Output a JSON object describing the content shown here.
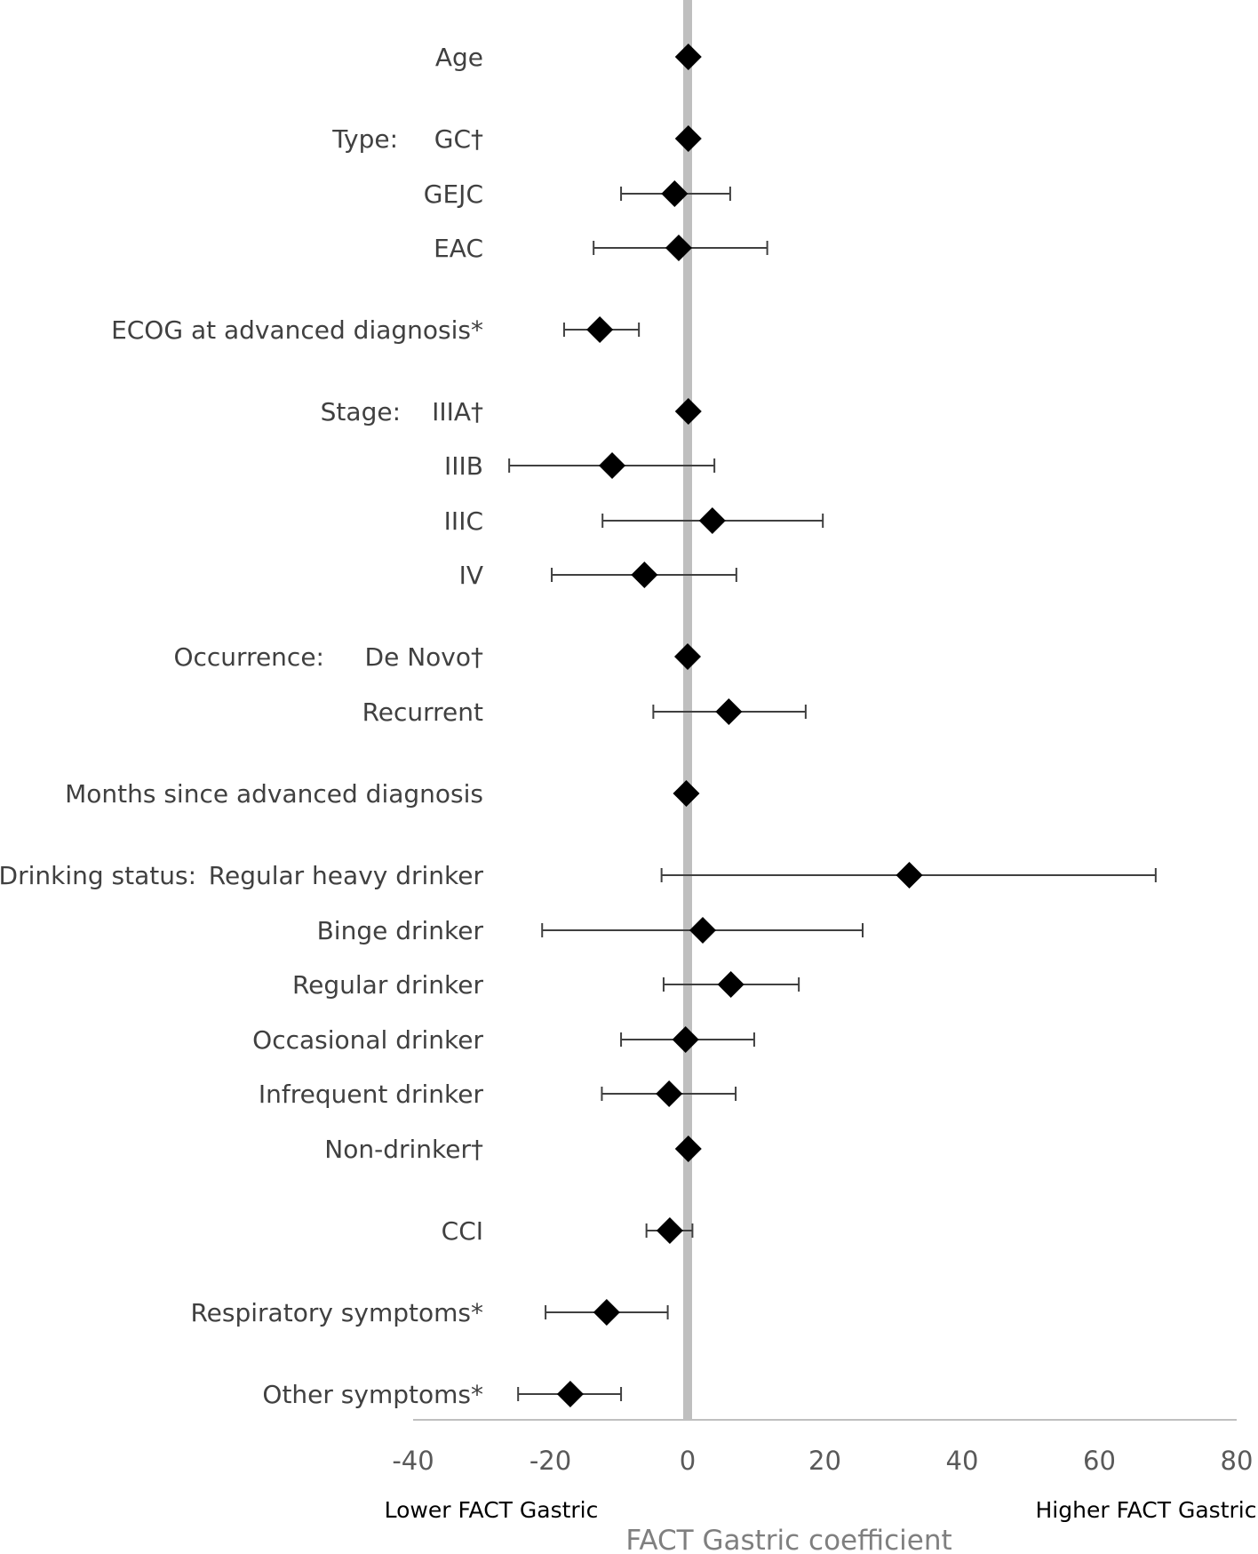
{
  "chart_data": {
    "type": "scatter",
    "subtype": "forest-plot",
    "xlabel": "FACT Gastric coefficient",
    "xlim": [
      -40,
      80
    ],
    "xticks": [
      "-40",
      "-20",
      "0",
      "20",
      "40",
      "60",
      "80"
    ],
    "reference_line": 0,
    "annotations": {
      "left": "Lower FACT Gastric",
      "right": "Higher FACT Gastric"
    },
    "colors": {
      "marker": "#000000",
      "errorbar": "#404040",
      "reference": "#bfbfbf",
      "text": "#404040"
    },
    "rows": [
      {
        "group": "",
        "label": "Age",
        "est": 0.1,
        "lo": null,
        "hi": null
      },
      {
        "group": "Type:",
        "label": "GC†",
        "est": 0.1,
        "lo": null,
        "hi": null
      },
      {
        "group": "",
        "label": "GEJC",
        "est": -1.9,
        "lo": -9.7,
        "hi": 6.2
      },
      {
        "group": "",
        "label": "EAC",
        "est": -1.3,
        "lo": -13.7,
        "hi": 11.6
      },
      {
        "group": "",
        "label": "ECOG at advanced diagnosis*",
        "est": -12.8,
        "lo": -18.0,
        "hi": -7.1
      },
      {
        "group": "Stage:",
        "label": "IIIA†",
        "est": 0.1,
        "lo": null,
        "hi": null
      },
      {
        "group": "",
        "label": "IIIB",
        "est": -11.0,
        "lo": -26.0,
        "hi": 3.9
      },
      {
        "group": "",
        "label": "IIIC",
        "est": 3.6,
        "lo": -12.4,
        "hi": 19.7
      },
      {
        "group": "",
        "label": "IV",
        "est": -6.3,
        "lo": -19.8,
        "hi": 7.1
      },
      {
        "group": "Occurrence:",
        "label": "De Novo†",
        "est": 0.0,
        "lo": null,
        "hi": null
      },
      {
        "group": "",
        "label": "Recurrent",
        "est": 6.0,
        "lo": -5.0,
        "hi": 17.2
      },
      {
        "group": "",
        "label": "Months since advanced diagnosis",
        "est": -0.2,
        "lo": null,
        "hi": null
      },
      {
        "group": "Drinking status:",
        "label": "Regular heavy drinker",
        "est": 32.3,
        "lo": -3.8,
        "hi": 68.2
      },
      {
        "group": "",
        "label": "Binge drinker",
        "est": 2.2,
        "lo": -21.2,
        "hi": 25.5
      },
      {
        "group": "",
        "label": "Regular drinker",
        "est": 6.3,
        "lo": -3.5,
        "hi": 16.2
      },
      {
        "group": "",
        "label": "Occasional drinker",
        "est": -0.3,
        "lo": -9.7,
        "hi": 9.7
      },
      {
        "group": "",
        "label": "Infrequent drinker",
        "est": -2.7,
        "lo": -12.5,
        "hi": 7.0
      },
      {
        "group": "",
        "label": "Non-drinker†",
        "est": 0.1,
        "lo": null,
        "hi": null
      },
      {
        "group": "",
        "label": "CCI",
        "est": -2.6,
        "lo": -6.0,
        "hi": 0.7
      },
      {
        "group": "",
        "label": "Respiratory symptoms*",
        "est": -11.8,
        "lo": -20.7,
        "hi": -2.9
      },
      {
        "group": "",
        "label": "Other symptoms*",
        "est": -17.1,
        "lo": -24.7,
        "hi": -9.7
      }
    ]
  }
}
